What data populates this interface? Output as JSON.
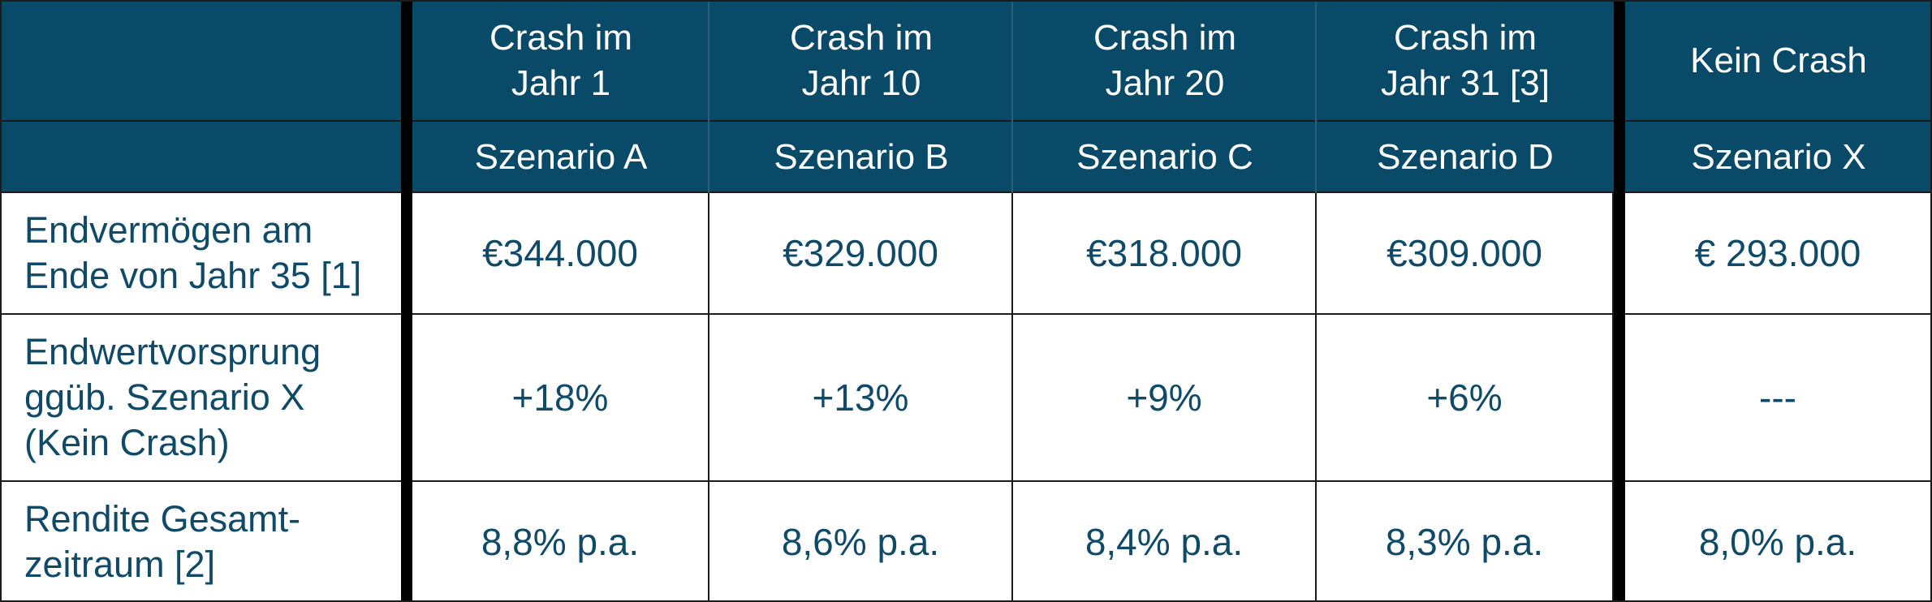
{
  "columns": [
    {
      "header": [
        "Crash im",
        "Jahr 1"
      ],
      "scenario": "Szenario A"
    },
    {
      "header": [
        "Crash im",
        "Jahr 10"
      ],
      "scenario": "Szenario B"
    },
    {
      "header": [
        "Crash im",
        "Jahr 20"
      ],
      "scenario": "Szenario C"
    },
    {
      "header": [
        "Crash im",
        "Jahr 31 [3]"
      ],
      "scenario": "Szenario D"
    },
    {
      "header": [
        "Kein Crash"
      ],
      "scenario": "Szenario X"
    }
  ],
  "rows": [
    {
      "label": [
        "Endvermögen am",
        "Ende von Jahr 35 [1]"
      ],
      "values": [
        "€344.000",
        "€329.000",
        "€318.000",
        "€309.000",
        "€ 293.000"
      ]
    },
    {
      "label": [
        "Endwertvorsprung",
        "ggüb. Szenario X",
        "(Kein Crash)"
      ],
      "values": [
        "+18%",
        "+13%",
        "+9%",
        "+6%",
        "---"
      ]
    },
    {
      "label": [
        "Rendite Gesamt-",
        "zeitraum [2]"
      ],
      "values": [
        "8,8% p.a.",
        "8,6% p.a.",
        "8,4% p.a.",
        "8,3% p.a.",
        "8,0% p.a."
      ]
    }
  ],
  "colors": {
    "header_bg": "#094a68",
    "text": "#0f4a68",
    "divider": "#000000"
  }
}
